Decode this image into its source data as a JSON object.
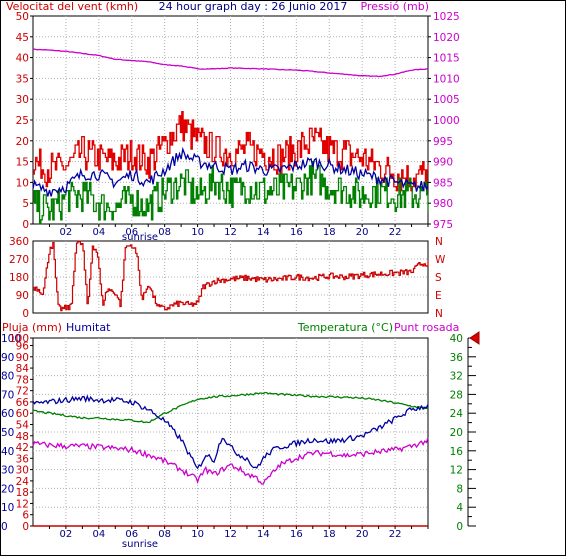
{
  "header": {
    "title": "24 hour graph day : 26 Junio 2017",
    "wind_label": "Velocitat del vent (kmh)",
    "pressure_label": "Pressió (mb)",
    "rain_label": "Pluja (mm)",
    "humidity_label": "Humitat",
    "temperature_label": "Temperatura (°C)",
    "dewpoint_label": "Punt rosada",
    "sunrise_label": "sunrise",
    "compass": [
      "N",
      "W",
      "S",
      "E",
      "N"
    ]
  },
  "colors": {
    "wind_gust": "#e00000",
    "wind_avg": "#0000a0",
    "wind_min": "#008000",
    "pressure": "#cc00cc",
    "direction": "#cc0000",
    "humidity": "#0000a0",
    "temperature": "#008000",
    "dewpoint": "#cc00cc",
    "rain": "#cc0000",
    "marker": "#dd0000"
  },
  "chart_data": [
    {
      "type": "line",
      "panel": "wind-pressure",
      "x_ticks": [
        "02",
        "04",
        "06",
        "08",
        "10",
        "12",
        "14",
        "16",
        "18",
        "20",
        "22",
        ""
      ],
      "xlim": [
        0,
        24
      ],
      "y_left": {
        "label": "Velocitat del vent (kmh)",
        "ticks": [
          0,
          5,
          10,
          15,
          20,
          25,
          30,
          35,
          40,
          45,
          50
        ],
        "ylim": [
          0,
          50
        ]
      },
      "y_right": {
        "label": "Pressió (mb)",
        "ticks": [
          975,
          980,
          985,
          990,
          995,
          1000,
          1005,
          1010,
          1015,
          1020,
          1025
        ],
        "ylim": [
          975,
          1025
        ]
      },
      "series": [
        {
          "name": "gust",
          "axis": "left",
          "x": [
            0,
            1,
            2,
            3,
            4,
            5,
            6,
            7,
            8,
            9,
            10,
            11,
            12,
            13,
            14,
            15,
            16,
            17,
            18,
            19,
            20,
            21,
            22,
            23,
            24
          ],
          "values": [
            15,
            13,
            14,
            17,
            16,
            15,
            17,
            15,
            19,
            24,
            20,
            18,
            17,
            18,
            17,
            16,
            18,
            20,
            18,
            17,
            16,
            14,
            12,
            11,
            12
          ]
        },
        {
          "name": "average",
          "axis": "left",
          "x": [
            0,
            1,
            2,
            3,
            4,
            5,
            6,
            7,
            8,
            9,
            10,
            11,
            12,
            13,
            14,
            15,
            16,
            17,
            18,
            19,
            20,
            21,
            22,
            23,
            24
          ],
          "values": [
            9,
            8,
            9,
            12,
            12,
            10,
            12,
            10,
            13,
            17,
            15,
            14,
            13,
            14,
            13,
            13,
            14,
            15,
            14,
            13,
            12,
            11,
            10,
            9,
            9
          ]
        },
        {
          "name": "minimum",
          "axis": "left",
          "x": [
            0,
            1,
            2,
            3,
            4,
            5,
            6,
            7,
            8,
            9,
            10,
            11,
            12,
            13,
            14,
            15,
            16,
            17,
            18,
            19,
            20,
            21,
            22,
            23,
            24
          ],
          "values": [
            5,
            3,
            6,
            7,
            5,
            4,
            6,
            4,
            8,
            10,
            7,
            10,
            8,
            9,
            8,
            8,
            9,
            11,
            9,
            8,
            7,
            8,
            7,
            7,
            7
          ]
        },
        {
          "name": "pressure",
          "axis": "right",
          "x": [
            0,
            1,
            2,
            3,
            4,
            5,
            6,
            7,
            8,
            9,
            10,
            11,
            12,
            13,
            14,
            15,
            16,
            17,
            18,
            19,
            20,
            21,
            22,
            23,
            24
          ],
          "values": [
            1017,
            1016.8,
            1016.5,
            1016,
            1015.5,
            1014.6,
            1014.3,
            1014,
            1013.3,
            1013,
            1012.3,
            1012.3,
            1012.5,
            1012.4,
            1012.3,
            1012.1,
            1012,
            1011.7,
            1011.3,
            1011,
            1010.6,
            1010.5,
            1011,
            1012,
            1012.3
          ]
        }
      ]
    },
    {
      "type": "line",
      "panel": "wind-direction",
      "y_left": {
        "ticks": [
          0,
          90,
          180,
          270,
          360
        ],
        "ylim": [
          0,
          360
        ]
      },
      "y_right": {
        "ticks": [
          "N",
          "W",
          "S",
          "E",
          "N"
        ]
      },
      "series": [
        {
          "name": "direction",
          "x": [
            0,
            0.3,
            0.6,
            1,
            1.2,
            1.5,
            1.7,
            2,
            2.3,
            2.6,
            3,
            3.3,
            3.6,
            3.9,
            4.2,
            4.5,
            5,
            5.3,
            5.6,
            6,
            6.3,
            6.6,
            7,
            7.3,
            7.6,
            8,
            8.5,
            9,
            9.5,
            10,
            10.3,
            11,
            12,
            13,
            14,
            15,
            16,
            17,
            18,
            19,
            20,
            21,
            22,
            23,
            23.5,
            24
          ],
          "values": [
            130,
            120,
            100,
            330,
            340,
            30,
            20,
            25,
            30,
            350,
            345,
            20,
            340,
            300,
            40,
            120,
            100,
            40,
            330,
            340,
            290,
            60,
            150,
            80,
            30,
            20,
            40,
            50,
            40,
            50,
            130,
            160,
            170,
            175,
            165,
            170,
            180,
            175,
            185,
            180,
            190,
            195,
            200,
            205,
            245,
            250
          ]
        }
      ]
    },
    {
      "type": "line",
      "panel": "humidity-temperature",
      "y_far_left": {
        "label": "Pluja (mm)",
        "ticks": [
          0,
          10,
          20,
          30,
          40,
          50,
          60,
          70,
          80,
          90,
          100
        ],
        "ylim": [
          0,
          100
        ]
      },
      "y_left": {
        "label": "Humitat",
        "ticks": [
          0,
          6,
          12,
          18,
          24,
          30,
          36,
          42,
          48,
          54,
          60,
          66,
          72,
          78,
          84,
          90,
          96,
          100
        ],
        "ylim": [
          0,
          100
        ]
      },
      "y_right": {
        "label": "Temperatura (°C)",
        "ticks": [
          0,
          4,
          8,
          12,
          16,
          20,
          24,
          28,
          32,
          36,
          40
        ],
        "ylim": [
          0,
          40
        ]
      },
      "series": [
        {
          "name": "humidity",
          "axis": "left",
          "x": [
            0,
            1,
            2,
            3,
            4,
            5,
            6,
            7,
            8,
            9,
            10,
            10.5,
            11,
            11.5,
            12,
            12.5,
            13,
            13.5,
            14,
            14.5,
            15,
            16,
            17,
            18,
            19,
            20,
            21,
            22,
            23,
            24
          ],
          "values": [
            65,
            66,
            67,
            68,
            67,
            67,
            66,
            62,
            56,
            46,
            30,
            38,
            35,
            48,
            42,
            38,
            36,
            30,
            36,
            40,
            42,
            44,
            46,
            45,
            46,
            48,
            52,
            57,
            62,
            64
          ]
        },
        {
          "name": "temperature",
          "axis": "right",
          "x": [
            0,
            1,
            2,
            3,
            4,
            5,
            6,
            7,
            8,
            9,
            10,
            11,
            12,
            13,
            14,
            15,
            16,
            17,
            18,
            19,
            20,
            21,
            22,
            23,
            24
          ],
          "values": [
            24.5,
            24,
            23.5,
            23,
            23,
            22.7,
            22.5,
            22,
            24,
            25.5,
            27,
            27.5,
            27.7,
            28,
            28.3,
            28,
            27.8,
            27.6,
            27.5,
            27.4,
            27.2,
            26.8,
            26.2,
            25.5,
            25
          ]
        },
        {
          "name": "dewpoint",
          "axis": "right",
          "x": [
            0,
            1,
            2,
            3,
            4,
            5,
            6,
            7,
            8,
            9,
            10,
            10.5,
            11,
            12,
            12.5,
            13,
            13.5,
            14,
            15,
            16,
            17,
            18,
            19,
            20,
            21,
            22,
            23,
            24
          ],
          "values": [
            17.5,
            17.2,
            17,
            17,
            16.8,
            16.5,
            16.2,
            15.2,
            13.8,
            12,
            9.8,
            12,
            11,
            13,
            12.2,
            11,
            10.5,
            9,
            13,
            14.5,
            15.5,
            15.5,
            15,
            15.3,
            15.8,
            16.2,
            17,
            18.2
          ]
        },
        {
          "name": "rain",
          "axis": "far_left",
          "x": [
            0,
            24
          ],
          "values": [
            0,
            0
          ]
        }
      ]
    }
  ]
}
